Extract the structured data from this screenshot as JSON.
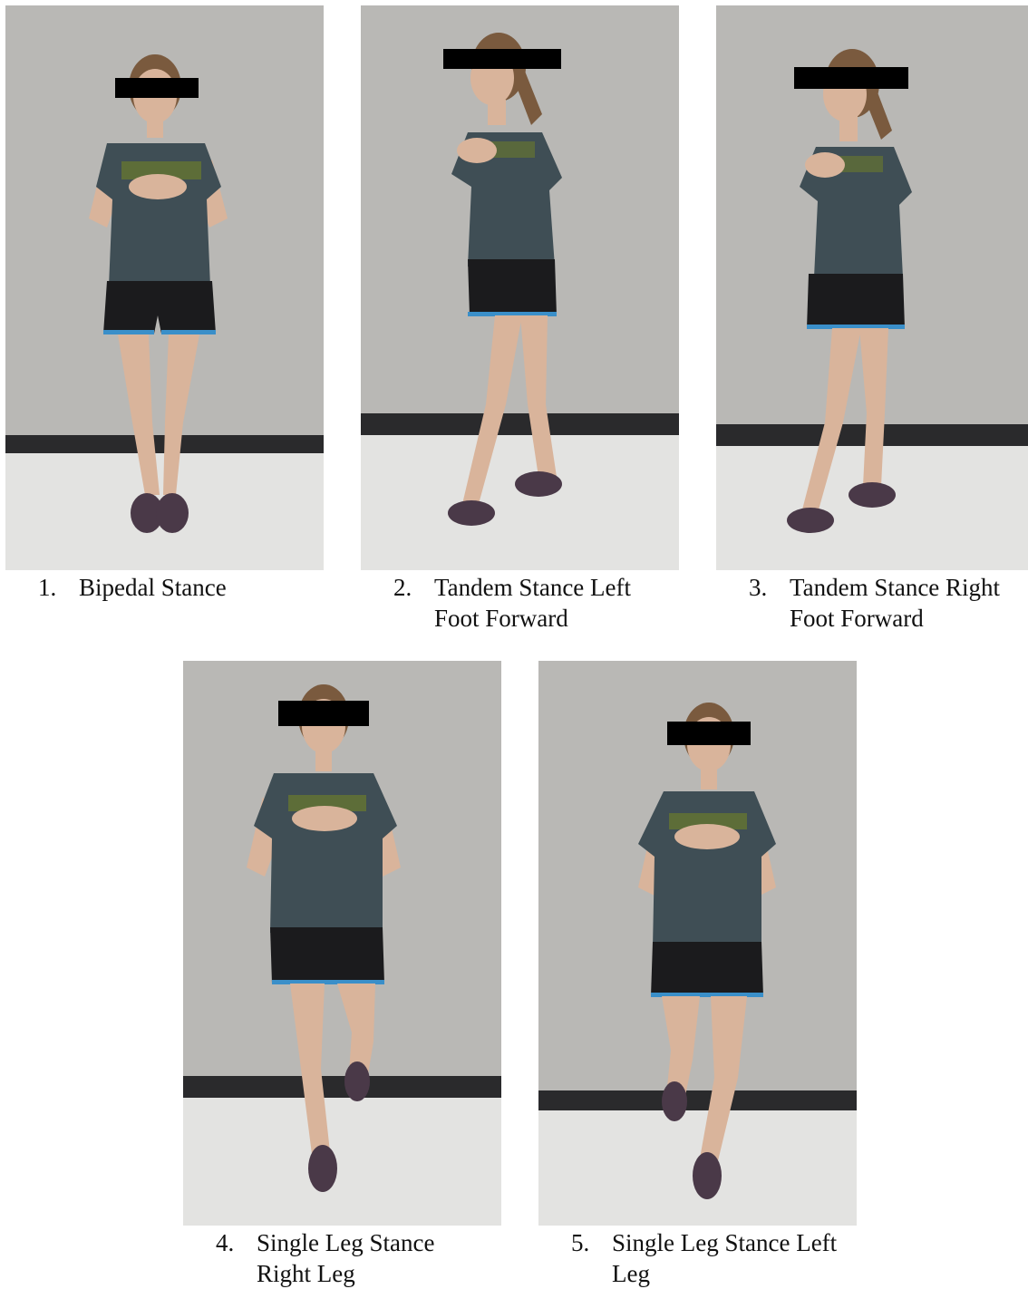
{
  "colors": {
    "wall": "#b9b8b5",
    "baseboard": "#2a2a2c",
    "floor": "#e3e3e1",
    "shirt": "#3f4e55",
    "shorts": "#1b1b1d",
    "shorts_trim": "#3a8fc9",
    "skin": "#d9b49b",
    "hair": "#7a5a3e",
    "censor_bar": "#000000",
    "shoe": "#4a3948"
  },
  "panels": [
    {
      "number": "1.",
      "lines": [
        "Bipedal Stance"
      ],
      "pose": "bipedal"
    },
    {
      "number": "2.",
      "lines": [
        "Tandem Stance Left",
        "Foot Forward"
      ],
      "pose": "tandem-left"
    },
    {
      "number": "3.",
      "lines": [
        "Tandem Stance Right",
        "Foot Forward"
      ],
      "pose": "tandem-right"
    },
    {
      "number": "4.",
      "lines": [
        "Single Leg Stance",
        "Right Leg"
      ],
      "pose": "single-right"
    },
    {
      "number": "5.",
      "lines": [
        "Single Leg Stance Left",
        "Leg"
      ],
      "pose": "single-left"
    }
  ]
}
